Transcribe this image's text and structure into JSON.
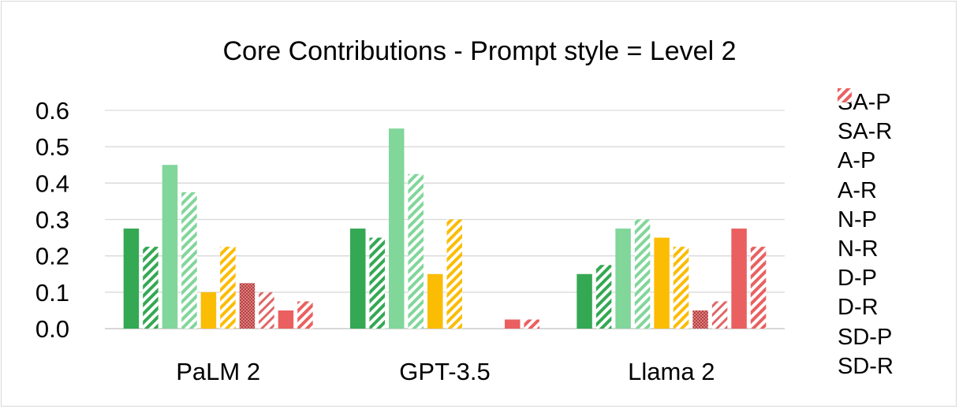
{
  "chart_data": {
    "type": "bar",
    "title": "Core Contributions - Prompt style = Level 2",
    "xlabel": "",
    "ylabel": "",
    "categories": [
      "PaLM 2",
      "GPT-3.5",
      "Llama 2"
    ],
    "ylim": [
      0,
      0.6
    ],
    "yticks": [
      "0.0",
      "0.1",
      "0.2",
      "0.3",
      "0.4",
      "0.5",
      "0.6"
    ],
    "grid": true,
    "legend_position": "right",
    "series": [
      {
        "name": "SA-P",
        "values": [
          0.275,
          0.275,
          0.15
        ],
        "color": "#34a853",
        "pattern": "solid"
      },
      {
        "name": "SA-R",
        "values": [
          0.225,
          0.25,
          0.175
        ],
        "color": "#34a853",
        "pattern": "wide-stripe"
      },
      {
        "name": "A-P",
        "values": [
          0.45,
          0.55,
          0.275
        ],
        "color": "#81d69a",
        "pattern": "solid"
      },
      {
        "name": "A-R",
        "values": [
          0.375,
          0.425,
          0.3
        ],
        "color": "#81d69a",
        "pattern": "wide-stripe"
      },
      {
        "name": "N-P",
        "values": [
          0.1,
          0.15,
          0.25
        ],
        "color": "#fbbc04",
        "pattern": "solid"
      },
      {
        "name": "N-R",
        "values": [
          0.225,
          0.3,
          0.225
        ],
        "color": "#fbbc04",
        "pattern": "wide-stripe"
      },
      {
        "name": "D-P",
        "values": [
          0.125,
          0,
          0.05
        ],
        "color": "#e06666",
        "pattern": "dotted"
      },
      {
        "name": "D-R",
        "values": [
          0.1,
          0,
          0.075
        ],
        "color": "#e06666",
        "pattern": "light-stripe"
      },
      {
        "name": "SD-P",
        "values": [
          0.05,
          0.025,
          0.275
        ],
        "color": "#ea6060",
        "pattern": "solid"
      },
      {
        "name": "SD-R",
        "values": [
          0.075,
          0.025,
          0.225
        ],
        "color": "#ea6060",
        "pattern": "wide-stripe"
      }
    ]
  }
}
